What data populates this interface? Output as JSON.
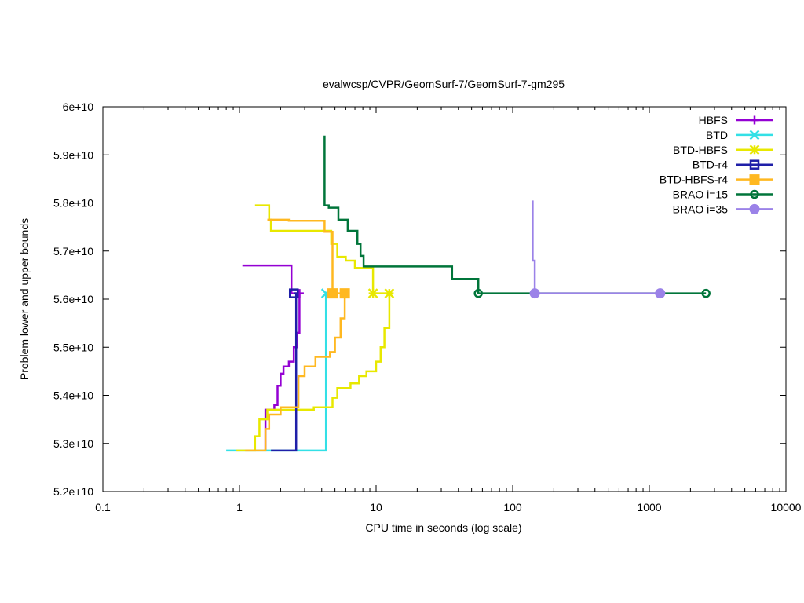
{
  "chart_data": {
    "type": "line",
    "title": "evalwcsp/CVPR/GeomSurf-7/GeomSurf-7-gm295",
    "xlabel": "CPU time in seconds (log scale)",
    "ylabel": "Problem lower and upper bounds",
    "xscale": "log",
    "xlim": [
      0.1,
      10000
    ],
    "ylim": [
      52000000000,
      60000000000
    ],
    "xticks": [
      0.1,
      1,
      10,
      100,
      1000,
      10000
    ],
    "xtick_labels": [
      "0.1",
      "1",
      "10",
      "100",
      "1000",
      "10000"
    ],
    "yticks": [
      52000000000,
      53000000000,
      54000000000,
      55000000000,
      56000000000,
      57000000000,
      58000000000,
      59000000000,
      60000000000
    ],
    "ytick_labels": [
      "5.2e+10",
      "5.3e+10",
      "5.4e+10",
      "5.5e+10",
      "5.6e+10",
      "5.7e+10",
      "5.8e+10",
      "5.9e+10",
      "6e+10"
    ],
    "grid": false,
    "legend": "top-right",
    "series": [
      {
        "name": "HBFS",
        "color": "#9400d3",
        "marker": "plus",
        "upper": [
          [
            1.05,
            56700000000
          ],
          [
            2.4,
            56700000000
          ],
          [
            2.4,
            56120000000
          ],
          [
            2.75,
            56120000000
          ]
        ],
        "lower": [
          [
            1.55,
            52850000000
          ],
          [
            1.55,
            53700000000
          ],
          [
            1.8,
            53700000000
          ],
          [
            1.8,
            53800000000
          ],
          [
            1.9,
            53800000000
          ],
          [
            1.9,
            54200000000
          ],
          [
            2.0,
            54200000000
          ],
          [
            2.0,
            54450000000
          ],
          [
            2.1,
            54450000000
          ],
          [
            2.1,
            54600000000
          ],
          [
            2.3,
            54600000000
          ],
          [
            2.3,
            54700000000
          ],
          [
            2.5,
            54700000000
          ],
          [
            2.5,
            55000000000
          ],
          [
            2.65,
            55000000000
          ],
          [
            2.65,
            55300000000
          ],
          [
            2.75,
            55300000000
          ],
          [
            2.75,
            56120000000
          ]
        ],
        "markers": [
          [
            2.75,
            56120000000
          ]
        ]
      },
      {
        "name": "BTD",
        "color": "#33e0e6",
        "marker": "cross",
        "upper": [],
        "lower": [
          [
            0.8,
            52850000000
          ],
          [
            4.3,
            52850000000
          ],
          [
            4.3,
            56120000000
          ]
        ],
        "markers": [
          [
            4.3,
            56120000000
          ]
        ]
      },
      {
        "name": "BTD-HBFS",
        "color": "#e8e800",
        "marker": "star",
        "upper": [
          [
            1.3,
            57950000000
          ],
          [
            1.65,
            57950000000
          ],
          [
            1.65,
            57650000000
          ],
          [
            1.7,
            57650000000
          ],
          [
            1.7,
            57420000000
          ],
          [
            4.7,
            57420000000
          ],
          [
            4.7,
            57150000000
          ],
          [
            5.2,
            57150000000
          ],
          [
            5.2,
            56880000000
          ],
          [
            6.0,
            56880000000
          ],
          [
            6.0,
            56800000000
          ],
          [
            7.0,
            56800000000
          ],
          [
            7.0,
            56650000000
          ],
          [
            9.5,
            56650000000
          ],
          [
            9.5,
            56120000000
          ],
          [
            12.5,
            56120000000
          ]
        ],
        "lower": [
          [
            0.95,
            52850000000
          ],
          [
            1.3,
            52850000000
          ],
          [
            1.3,
            53150000000
          ],
          [
            1.4,
            53150000000
          ],
          [
            1.4,
            53500000000
          ],
          [
            1.6,
            53500000000
          ],
          [
            1.6,
            53700000000
          ],
          [
            3.5,
            53700000000
          ],
          [
            3.5,
            53750000000
          ],
          [
            4.8,
            53750000000
          ],
          [
            4.8,
            53950000000
          ],
          [
            5.2,
            53950000000
          ],
          [
            5.2,
            54150000000
          ],
          [
            6.5,
            54150000000
          ],
          [
            6.5,
            54250000000
          ],
          [
            7.5,
            54250000000
          ],
          [
            7.5,
            54400000000
          ],
          [
            8.5,
            54400000000
          ],
          [
            8.5,
            54500000000
          ],
          [
            10.0,
            54500000000
          ],
          [
            10.0,
            54700000000
          ],
          [
            10.8,
            54700000000
          ],
          [
            10.8,
            55000000000
          ],
          [
            11.5,
            55000000000
          ],
          [
            11.5,
            55400000000
          ],
          [
            12.5,
            55400000000
          ],
          [
            12.5,
            56120000000
          ]
        ],
        "markers": [
          [
            9.5,
            56120000000
          ],
          [
            12.5,
            56120000000
          ]
        ]
      },
      {
        "name": "BTD-r4",
        "color": "#1f1fa8",
        "marker": "square-open",
        "upper": [],
        "lower": [
          [
            1.7,
            52850000000
          ],
          [
            2.6,
            52850000000
          ],
          [
            2.6,
            56120000000
          ],
          [
            2.5,
            56120000000
          ]
        ],
        "markers": [
          [
            2.5,
            56120000000
          ]
        ]
      },
      {
        "name": "BTD-HBFS-r4",
        "color": "#ffb820",
        "marker": "square-filled",
        "upper": [
          [
            1.6,
            57650000000
          ],
          [
            2.3,
            57650000000
          ],
          [
            2.3,
            57630000000
          ],
          [
            4.2,
            57630000000
          ],
          [
            4.2,
            57400000000
          ],
          [
            4.8,
            57400000000
          ],
          [
            4.8,
            56120000000
          ],
          [
            5.9,
            56120000000
          ]
        ],
        "lower": [
          [
            1.1,
            52850000000
          ],
          [
            1.55,
            52850000000
          ],
          [
            1.55,
            53300000000
          ],
          [
            1.65,
            53300000000
          ],
          [
            1.65,
            53600000000
          ],
          [
            2.0,
            53600000000
          ],
          [
            2.0,
            53750000000
          ],
          [
            2.7,
            53750000000
          ],
          [
            2.7,
            54400000000
          ],
          [
            3.0,
            54400000000
          ],
          [
            3.0,
            54600000000
          ],
          [
            3.6,
            54600000000
          ],
          [
            3.6,
            54800000000
          ],
          [
            4.6,
            54800000000
          ],
          [
            4.6,
            54900000000
          ],
          [
            5.0,
            54900000000
          ],
          [
            5.0,
            55200000000
          ],
          [
            5.5,
            55200000000
          ],
          [
            5.5,
            55600000000
          ],
          [
            5.9,
            55600000000
          ],
          [
            5.9,
            56120000000
          ]
        ],
        "markers": [
          [
            4.8,
            56120000000
          ],
          [
            5.9,
            56120000000
          ]
        ]
      },
      {
        "name": "BRAO i=15",
        "color": "#00753a",
        "marker": "circle-open",
        "upper": [
          [
            4.2,
            59400000000
          ],
          [
            4.2,
            57950000000
          ],
          [
            4.5,
            57950000000
          ],
          [
            4.5,
            57900000000
          ],
          [
            5.3,
            57900000000
          ],
          [
            5.3,
            57650000000
          ],
          [
            6.2,
            57650000000
          ],
          [
            6.2,
            57420000000
          ],
          [
            7.3,
            57420000000
          ],
          [
            7.3,
            57150000000
          ],
          [
            7.7,
            57150000000
          ],
          [
            7.7,
            56900000000
          ],
          [
            8.1,
            56900000000
          ],
          [
            8.1,
            56680000000
          ],
          [
            36.0,
            56680000000
          ],
          [
            36.0,
            56420000000
          ],
          [
            56.0,
            56420000000
          ],
          [
            56.0,
            56120000000
          ],
          [
            2600.0,
            56120000000
          ]
        ],
        "lower": [],
        "markers": [
          [
            56.0,
            56120000000
          ],
          [
            2600.0,
            56120000000
          ]
        ]
      },
      {
        "name": "BRAO i=35",
        "color": "#9b82e8",
        "marker": "circle-filled",
        "upper": [
          [
            140.0,
            58050000000
          ],
          [
            140.0,
            56800000000
          ],
          [
            145.0,
            56800000000
          ],
          [
            145.0,
            56120000000
          ],
          [
            1200.0,
            56120000000
          ]
        ],
        "lower": [],
        "markers": [
          [
            145.0,
            56120000000
          ],
          [
            1200.0,
            56120000000
          ]
        ]
      }
    ]
  }
}
